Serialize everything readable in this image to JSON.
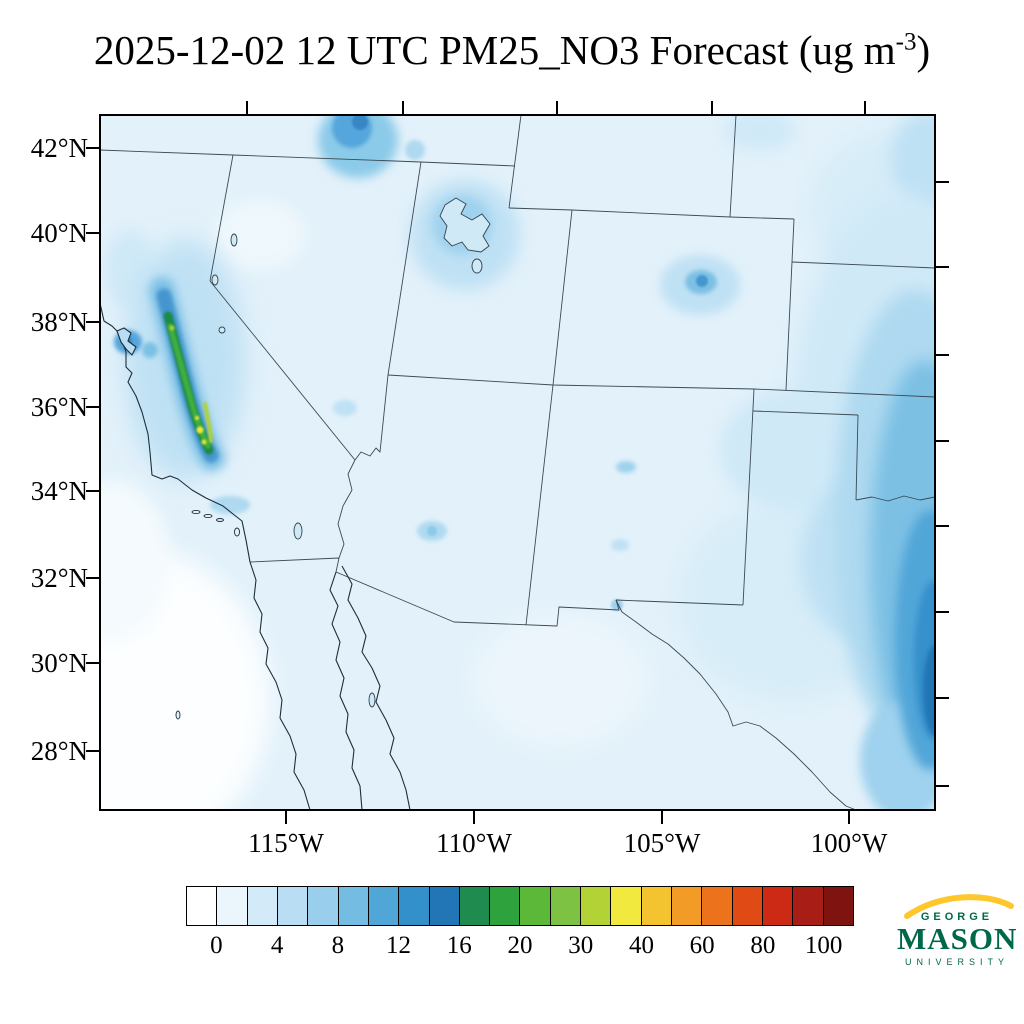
{
  "title": {
    "prefix": "2025-12-02 12 UTC PM25_NO3 Forecast (ug m",
    "exponent": "-3",
    "suffix": ")"
  },
  "axes": {
    "y_tick_labels": [
      "42°N",
      "40°N",
      "38°N",
      "36°N",
      "34°N",
      "32°N",
      "30°N",
      "28°N"
    ],
    "x_tick_labels": [
      "115°W",
      "110°W",
      "105°W",
      "100°W"
    ]
  },
  "colorbar": {
    "tick_labels": [
      "0",
      "4",
      "8",
      "12",
      "16",
      "20",
      "30",
      "40",
      "60",
      "80",
      "100"
    ],
    "cell_colors": [
      "#ffffff",
      "#eaf5fc",
      "#d3eaf8",
      "#b9def3",
      "#99cfec",
      "#75bce3",
      "#51a6d8",
      "#3490cb",
      "#2276b5",
      "#208b4e",
      "#2ea23c",
      "#5cb838",
      "#7dc242",
      "#b2d235",
      "#f2e93e",
      "#f4c430",
      "#f29b26",
      "#ec721c",
      "#e04b15",
      "#cc2a14",
      "#a81d15",
      "#7f1310"
    ]
  },
  "logo": {
    "top": "GEORGE",
    "middle": "MASON",
    "bottom": "UNIVERSITY",
    "green": "#00684a",
    "gold": "#FFC72C"
  },
  "chart_data": {
    "type": "heatmap",
    "title": "2025-12-02 12 UTC PM25_NO3 Forecast (ug m-3)",
    "variable": "PM25_NO3",
    "units": "ug m-3",
    "forecast_time": "2025-12-02 12 UTC",
    "lat_ticks_deg_n": [
      42,
      40,
      38,
      36,
      34,
      32,
      30,
      28
    ],
    "lon_ticks_deg_w": [
      115,
      110,
      105,
      100
    ],
    "colorbar_tick_values": [
      0,
      4,
      8,
      12,
      16,
      20,
      30,
      40,
      60,
      80,
      100
    ],
    "legend_position": "bottom",
    "grid": false,
    "field_summary": [
      {
        "region": "California Central Valley (San Joaquin)",
        "approx_value_ug_m3": "8-30 peak band (green/yellow)"
      },
      {
        "region": "San Francisco Bay Area",
        "approx_value_ug_m3": "6-12"
      },
      {
        "region": "Great Plains along eastern map edge",
        "approx_value_ug_m3": "3-10"
      },
      {
        "region": "southern Idaho at top edge",
        "approx_value_ug_m3": "4-8"
      },
      {
        "region": "Salt Lake City area, Utah",
        "approx_value_ug_m3": "3-6"
      },
      {
        "region": "Denver Front Range, Colorado",
        "approx_value_ug_m3": "3-6"
      },
      {
        "region": "most of the domain",
        "approx_value_ug_m3": "0-2"
      }
    ]
  }
}
